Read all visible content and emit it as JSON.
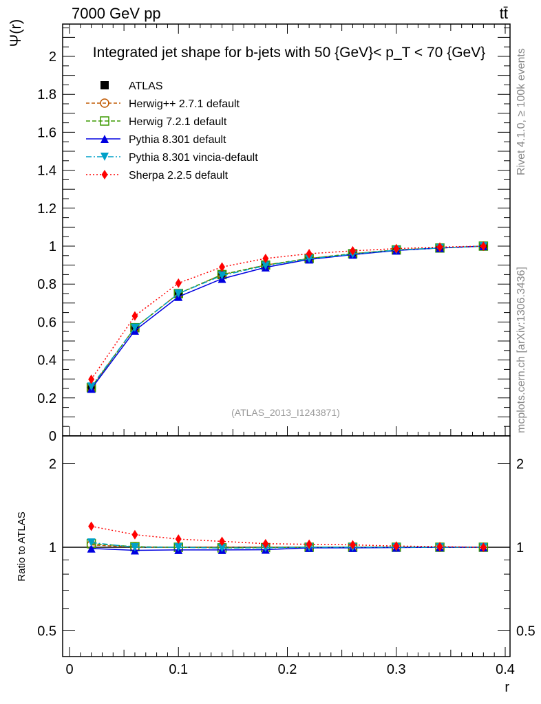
{
  "header": {
    "left": "7000 GeV pp",
    "right": "tt̄",
    "side_top": "Rivet 4.1.0, ≥ 100k events",
    "side_bottom": "mcplots.cern.ch [arXiv:1306.3436]"
  },
  "chart_data": [
    {
      "type": "line",
      "title": "Integrated jet shape for b-jets with 50 {GeV}< p_T < 70 {GeV}",
      "ylabel": "Ψ(r)",
      "xlabel": "r",
      "xlim": [
        -0.0125,
        0.4
      ],
      "ylim": [
        0,
        2.17
      ],
      "yticks": [
        "0",
        "0.2",
        "0.4",
        "0.6",
        "0.8",
        "1",
        "1.2",
        "1.4",
        "1.6",
        "1.8",
        "2"
      ],
      "watermark": "(ATLAS_2013_I1243871)",
      "x": [
        0.02,
        0.06,
        0.1,
        0.14,
        0.18,
        0.22,
        0.26,
        0.3,
        0.34,
        0.38
      ],
      "series": [
        {
          "name": "ATLAS",
          "color": "#000000",
          "marker": "square-filled",
          "values": [
            0.25,
            0.57,
            0.75,
            0.85,
            0.9,
            0.935,
            0.96,
            0.98,
            0.99,
            1.0
          ]
        },
        {
          "name": "Herwig++ 2.7.1 default",
          "color": "#c05800",
          "marker": "circle-open",
          "dash": "5,3",
          "values": [
            0.255,
            0.57,
            0.75,
            0.85,
            0.9,
            0.935,
            0.96,
            0.98,
            0.99,
            1.0
          ]
        },
        {
          "name": "Herwig 7.2.1 default",
          "color": "#3c9a00",
          "marker": "square-open",
          "dash": "6,3",
          "values": [
            0.255,
            0.57,
            0.75,
            0.85,
            0.9,
            0.935,
            0.96,
            0.98,
            0.99,
            1.0
          ]
        },
        {
          "name": "Pythia 8.301 default",
          "color": "#0000e0",
          "marker": "triangle-up",
          "dash": "",
          "values": [
            0.248,
            0.555,
            0.733,
            0.828,
            0.888,
            0.93,
            0.955,
            0.977,
            0.99,
            1.0
          ]
        },
        {
          "name": "Pythia 8.301 vincia-default",
          "color": "#00a0c8",
          "marker": "triangle-down",
          "dash": "8,3,2,3",
          "values": [
            0.26,
            0.57,
            0.75,
            0.845,
            0.897,
            0.933,
            0.958,
            0.979,
            0.99,
            1.0
          ]
        },
        {
          "name": "Sherpa 2.2.5 default",
          "color": "#ff0000",
          "marker": "diamond",
          "dash": "2,3",
          "values": [
            0.298,
            0.632,
            0.805,
            0.89,
            0.935,
            0.96,
            0.975,
            0.987,
            0.995,
            1.0
          ]
        }
      ]
    },
    {
      "type": "line",
      "ylabel": "Ratio to ATLAS",
      "xlabel": "r",
      "scale": "log",
      "ylim": [
        0.404,
        2.52
      ],
      "yticks": [
        "0.5",
        "1",
        "2"
      ],
      "xticks": [
        "0",
        "0.1",
        "0.2",
        "0.3",
        "0.4"
      ],
      "series": [
        {
          "name": "Herwig++ 2.7.1 default",
          "values": [
            1.02,
            1.0,
            1.0,
            1.0,
            1.0,
            1.0,
            1.0,
            1.0,
            1.0,
            1.0
          ]
        },
        {
          "name": "Herwig 7.2.1 default",
          "values": [
            1.03,
            1.005,
            1.0,
            0.995,
            0.997,
            1.0,
            1.0,
            1.0,
            1.0,
            1.0
          ]
        },
        {
          "name": "Pythia 8.301 default",
          "values": [
            0.99,
            0.975,
            0.978,
            0.978,
            0.98,
            0.995,
            0.995,
            0.997,
            1.0,
            1.0
          ]
        },
        {
          "name": "Pythia 8.301 vincia-default",
          "values": [
            1.04,
            1.0,
            1.0,
            0.993,
            0.995,
            1.0,
            1.0,
            1.0,
            1.0,
            1.0
          ]
        },
        {
          "name": "Sherpa 2.2.5 default",
          "values": [
            1.19,
            1.11,
            1.07,
            1.05,
            1.03,
            1.025,
            1.02,
            1.01,
            1.005,
            1.0
          ]
        }
      ]
    }
  ]
}
